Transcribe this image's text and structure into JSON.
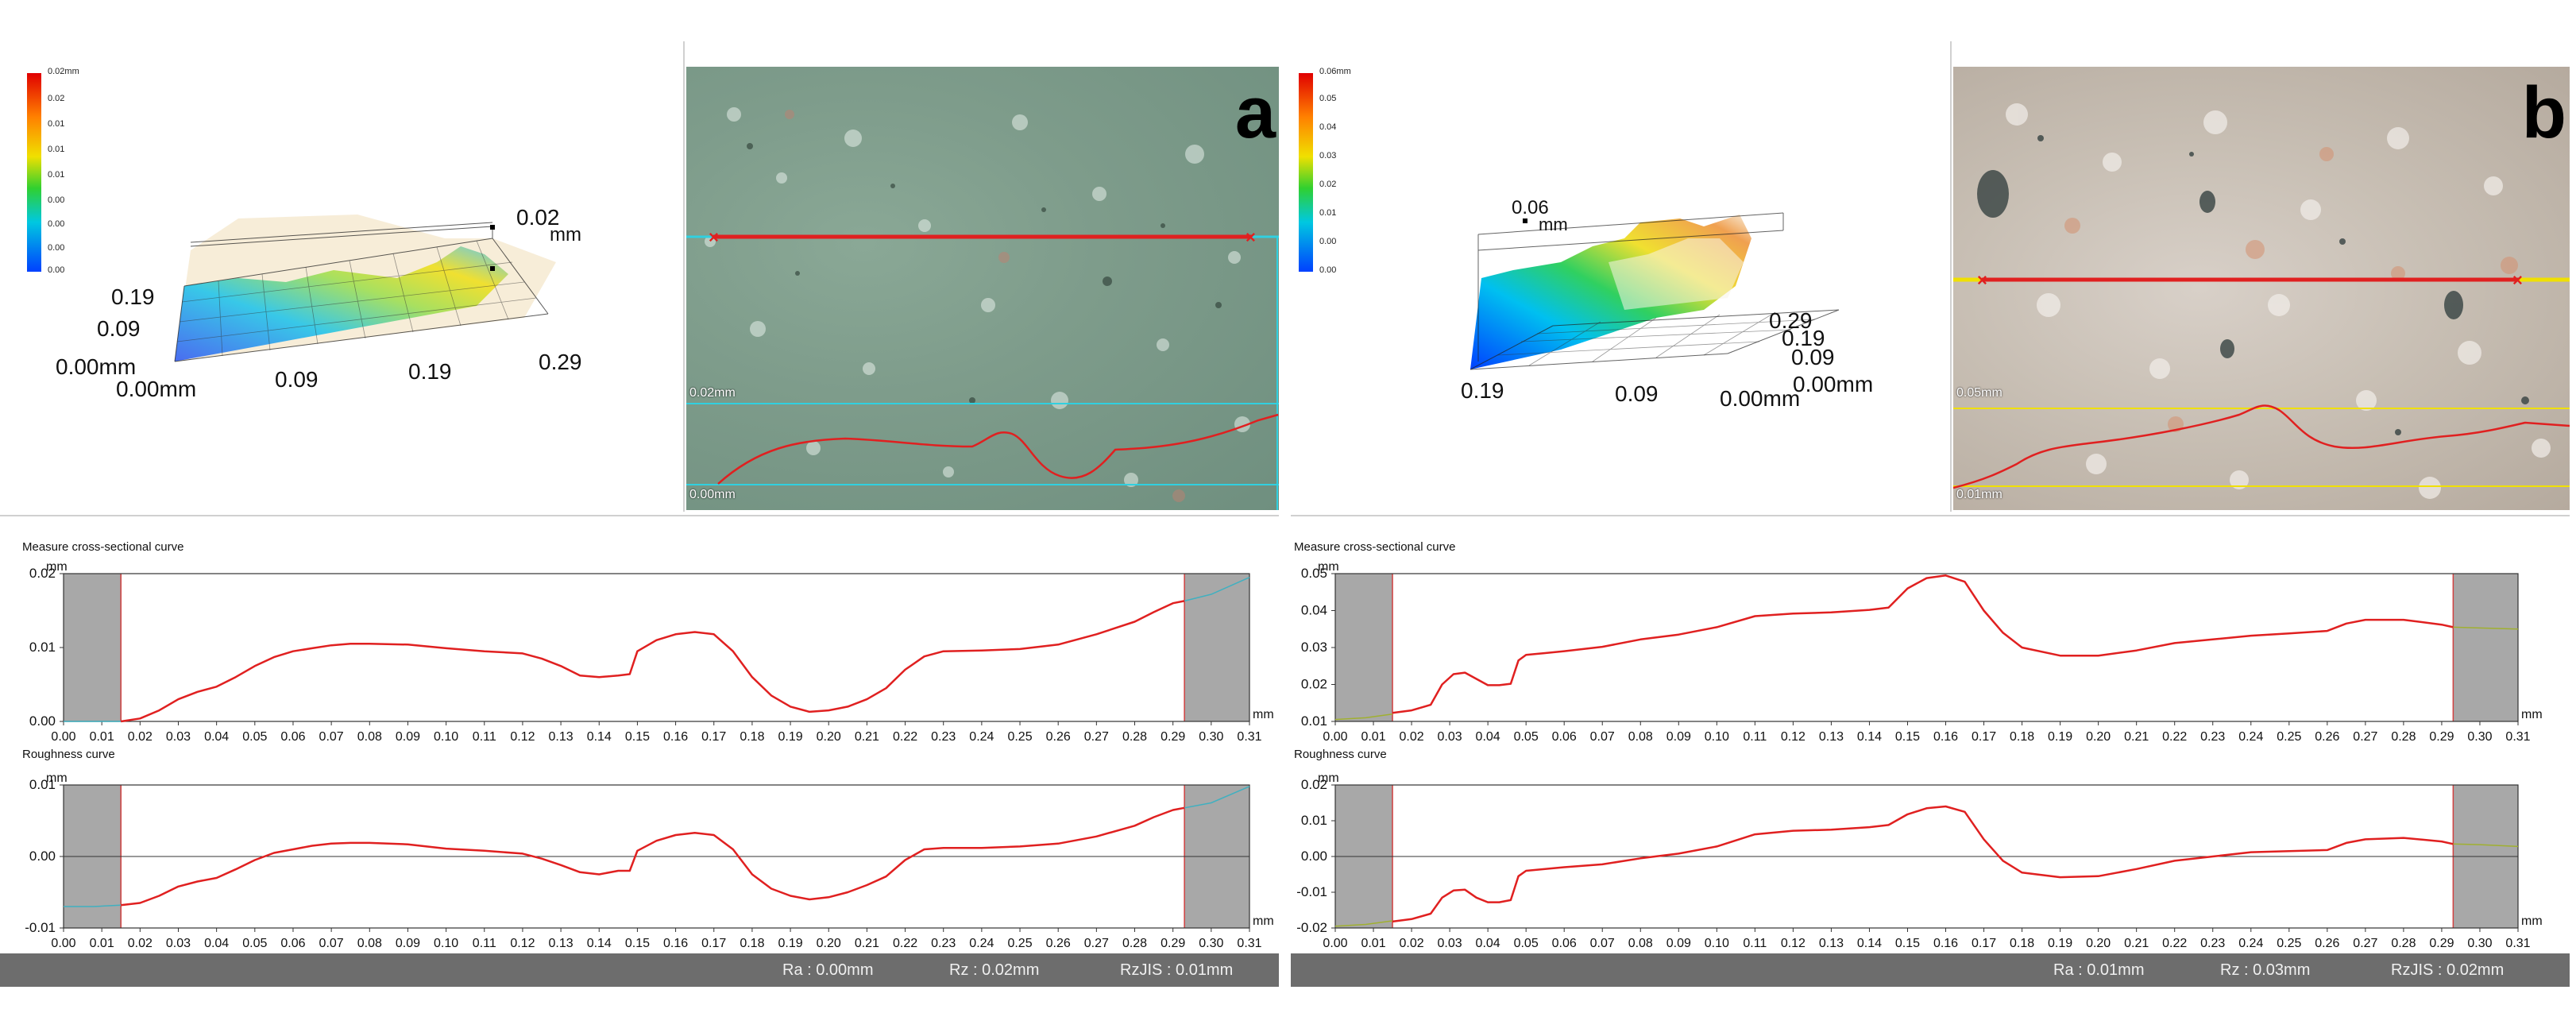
{
  "panels": [
    {
      "id": "a",
      "letter": "a",
      "colorbar_labels": [
        "0.02mm",
        "0.02",
        "0.01",
        "0.01",
        "0.01",
        "0.00",
        "0.00",
        "0.00",
        "0.00"
      ],
      "view3d_labels": {
        "z_top": "0.02",
        "z_unit": "mm",
        "y_labels": [
          "0.19",
          "0.09",
          "0.00mm"
        ],
        "x_labels": [
          "0.00mm",
          "0.09",
          "0.19",
          "0.29"
        ]
      },
      "photo_labels": [
        "0.02mm",
        "0.00mm"
      ],
      "photo_colors": {
        "base": "#7e9c8b",
        "line": "#e02020",
        "guide": "#30d0e0"
      },
      "stats": [
        "Ra : 0.00mm",
        "Rz : 0.02mm",
        "RzJIS : 0.01mm"
      ]
    },
    {
      "id": "b",
      "letter": "b",
      "colorbar_labels": [
        "0.06mm",
        "0.05",
        "0.04",
        "0.03",
        "0.02",
        "0.01",
        "0.00",
        "0.00"
      ],
      "view3d_labels": {
        "z_top": "0.06",
        "z_unit": "mm",
        "y_labels": [
          "0.29",
          "0.19",
          "0.09",
          "0.00mm"
        ],
        "x_labels": [
          "0.19",
          "0.09",
          "0.00mm"
        ]
      },
      "photo_labels": [
        "0.05mm",
        "0.01mm"
      ],
      "photo_colors": {
        "base": "#c8bfb4",
        "line": "#e02020",
        "guide": "#f0e000"
      },
      "stats": [
        "Ra : 0.01mm",
        "Rz : 0.03mm",
        "RzJIS : 0.02mm"
      ]
    }
  ],
  "chart_data": [
    {
      "type": "line",
      "panel": "a",
      "title": "Measure cross-sectional curve",
      "xlabel": "mm",
      "ylabel": "mm",
      "xlim": [
        0,
        0.31
      ],
      "ylim": [
        0,
        0.02
      ],
      "xticks": [
        "0.00",
        "0.01",
        "0.02",
        "0.03",
        "0.04",
        "0.05",
        "0.06",
        "0.07",
        "0.08",
        "0.09",
        "0.10",
        "0.11",
        "0.12",
        "0.13",
        "0.14",
        "0.15",
        "0.16",
        "0.17",
        "0.18",
        "0.19",
        "0.20",
        "0.21",
        "0.22",
        "0.23",
        "0.24",
        "0.25",
        "0.26",
        "0.27",
        "0.28",
        "0.29",
        "0.30",
        "0.31"
      ],
      "yticks": [
        "0.02",
        "0.01",
        "0.00"
      ],
      "shaded_x": [
        [
          0,
          0.015
        ],
        [
          0.293,
          0.31
        ]
      ],
      "outer": {
        "x": [
          0,
          0.008,
          0.015
        ],
        "y": [
          0,
          0,
          0
        ]
      },
      "outer_right": {
        "x": [
          0.293,
          0.3,
          0.31
        ],
        "y": [
          0.0163,
          0.0172,
          0.0195
        ]
      },
      "x": [
        0.015,
        0.02,
        0.025,
        0.03,
        0.035,
        0.04,
        0.045,
        0.05,
        0.055,
        0.06,
        0.065,
        0.07,
        0.075,
        0.08,
        0.09,
        0.1,
        0.11,
        0.12,
        0.125,
        0.13,
        0.135,
        0.14,
        0.145,
        0.148,
        0.15,
        0.155,
        0.16,
        0.165,
        0.17,
        0.175,
        0.18,
        0.185,
        0.19,
        0.195,
        0.2,
        0.205,
        0.21,
        0.215,
        0.22,
        0.225,
        0.23,
        0.24,
        0.25,
        0.26,
        0.27,
        0.28,
        0.285,
        0.29,
        0.293
      ],
      "y": [
        0.0,
        0.0004,
        0.0015,
        0.003,
        0.004,
        0.0047,
        0.006,
        0.0075,
        0.0087,
        0.0095,
        0.0099,
        0.0103,
        0.0105,
        0.0105,
        0.0104,
        0.0099,
        0.0095,
        0.0092,
        0.0085,
        0.0075,
        0.0062,
        0.006,
        0.0062,
        0.0064,
        0.0095,
        0.011,
        0.0118,
        0.0121,
        0.0118,
        0.0095,
        0.006,
        0.0035,
        0.002,
        0.0013,
        0.0015,
        0.002,
        0.003,
        0.0045,
        0.007,
        0.0088,
        0.0095,
        0.0096,
        0.0098,
        0.0104,
        0.0118,
        0.0135,
        0.0148,
        0.016,
        0.0163
      ]
    },
    {
      "type": "line",
      "panel": "a",
      "title": "Roughness curve",
      "xlabel": "mm",
      "ylabel": "mm",
      "xlim": [
        0,
        0.31
      ],
      "ylim": [
        -0.01,
        0.01
      ],
      "xticks": [
        "0.00",
        "0.01",
        "0.02",
        "0.03",
        "0.04",
        "0.05",
        "0.06",
        "0.07",
        "0.08",
        "0.09",
        "0.10",
        "0.11",
        "0.12",
        "0.13",
        "0.14",
        "0.15",
        "0.16",
        "0.17",
        "0.18",
        "0.19",
        "0.20",
        "0.21",
        "0.22",
        "0.23",
        "0.24",
        "0.25",
        "0.26",
        "0.27",
        "0.28",
        "0.29",
        "0.30",
        "0.31"
      ],
      "yticks": [
        "0.01",
        "0.00",
        "-0.01"
      ],
      "shaded_x": [
        [
          0,
          0.015
        ],
        [
          0.293,
          0.31
        ]
      ],
      "outer": {
        "x": [
          0,
          0.008,
          0.015
        ],
        "y": [
          -0.007,
          -0.007,
          -0.0068
        ]
      },
      "outer_right": {
        "x": [
          0.293,
          0.3,
          0.31
        ],
        "y": [
          0.0068,
          0.0075,
          0.0098
        ]
      },
      "x": [
        0.015,
        0.02,
        0.025,
        0.03,
        0.035,
        0.04,
        0.045,
        0.05,
        0.055,
        0.06,
        0.065,
        0.07,
        0.075,
        0.08,
        0.09,
        0.1,
        0.11,
        0.12,
        0.125,
        0.13,
        0.135,
        0.14,
        0.145,
        0.148,
        0.15,
        0.155,
        0.16,
        0.165,
        0.17,
        0.175,
        0.18,
        0.185,
        0.19,
        0.195,
        0.2,
        0.205,
        0.21,
        0.215,
        0.22,
        0.225,
        0.23,
        0.24,
        0.25,
        0.26,
        0.27,
        0.28,
        0.285,
        0.29,
        0.293
      ],
      "y": [
        -0.0068,
        -0.0065,
        -0.0055,
        -0.0042,
        -0.0035,
        -0.003,
        -0.0018,
        -0.0005,
        0.0005,
        0.001,
        0.0015,
        0.0018,
        0.0019,
        0.0019,
        0.0017,
        0.0011,
        0.0008,
        0.0004,
        -0.0003,
        -0.0012,
        -0.0022,
        -0.0025,
        -0.002,
        -0.002,
        0.0008,
        0.0022,
        0.003,
        0.0033,
        0.003,
        0.001,
        -0.0025,
        -0.0045,
        -0.0055,
        -0.006,
        -0.0057,
        -0.005,
        -0.004,
        -0.0028,
        -0.0005,
        0.001,
        0.0012,
        0.0012,
        0.0014,
        0.0018,
        0.0028,
        0.0043,
        0.0055,
        0.0065,
        0.0068
      ]
    },
    {
      "type": "line",
      "panel": "b",
      "title": "Measure cross-sectional curve",
      "xlabel": "mm",
      "ylabel": "mm",
      "xlim": [
        0,
        0.31
      ],
      "ylim": [
        0.01,
        0.05
      ],
      "xticks": [
        "0.00",
        "0.01",
        "0.02",
        "0.03",
        "0.04",
        "0.05",
        "0.06",
        "0.07",
        "0.08",
        "0.09",
        "0.10",
        "0.11",
        "0.12",
        "0.13",
        "0.14",
        "0.15",
        "0.16",
        "0.17",
        "0.18",
        "0.19",
        "0.20",
        "0.21",
        "0.22",
        "0.23",
        "0.24",
        "0.25",
        "0.26",
        "0.27",
        "0.28",
        "0.29",
        "0.30",
        "0.31"
      ],
      "yticks": [
        "0.05",
        "0.04",
        "0.03",
        "0.02",
        "0.01"
      ],
      "shaded_x": [
        [
          0,
          0.015
        ],
        [
          0.293,
          0.31
        ]
      ],
      "outer": {
        "x": [
          0,
          0.008,
          0.015
        ],
        "y": [
          0.0105,
          0.011,
          0.012
        ]
      },
      "outer_right": {
        "x": [
          0.293,
          0.3,
          0.31
        ],
        "y": [
          0.0355,
          0.0353,
          0.035
        ]
      },
      "x": [
        0.015,
        0.02,
        0.025,
        0.028,
        0.031,
        0.034,
        0.037,
        0.04,
        0.043,
        0.046,
        0.048,
        0.05,
        0.055,
        0.06,
        0.07,
        0.08,
        0.09,
        0.1,
        0.11,
        0.12,
        0.13,
        0.14,
        0.145,
        0.15,
        0.155,
        0.16,
        0.165,
        0.17,
        0.175,
        0.18,
        0.19,
        0.2,
        0.21,
        0.22,
        0.23,
        0.24,
        0.25,
        0.26,
        0.265,
        0.27,
        0.28,
        0.29,
        0.293
      ],
      "y": [
        0.0123,
        0.013,
        0.0145,
        0.02,
        0.0228,
        0.0232,
        0.0215,
        0.0198,
        0.0198,
        0.0202,
        0.0265,
        0.028,
        0.0285,
        0.029,
        0.0302,
        0.0322,
        0.0335,
        0.0355,
        0.0385,
        0.0392,
        0.0395,
        0.0402,
        0.0408,
        0.046,
        0.0488,
        0.0495,
        0.0478,
        0.04,
        0.034,
        0.03,
        0.0278,
        0.0278,
        0.0292,
        0.0312,
        0.0322,
        0.0332,
        0.0338,
        0.0345,
        0.0365,
        0.0375,
        0.0375,
        0.0362,
        0.0355
      ]
    },
    {
      "type": "line",
      "panel": "b",
      "title": "Roughness curve",
      "xlabel": "mm",
      "ylabel": "mm",
      "xlim": [
        0,
        0.31
      ],
      "ylim": [
        -0.02,
        0.02
      ],
      "xticks": [
        "0.00",
        "0.01",
        "0.02",
        "0.03",
        "0.04",
        "0.05",
        "0.06",
        "0.07",
        "0.08",
        "0.09",
        "0.10",
        "0.11",
        "0.12",
        "0.13",
        "0.14",
        "0.15",
        "0.16",
        "0.17",
        "0.18",
        "0.19",
        "0.20",
        "0.21",
        "0.22",
        "0.23",
        "0.24",
        "0.25",
        "0.26",
        "0.27",
        "0.28",
        "0.29",
        "0.30",
        "0.31"
      ],
      "yticks": [
        "0.02",
        "0.01",
        "0.00",
        "-0.01",
        "-0.02"
      ],
      "shaded_x": [
        [
          0,
          0.015
        ],
        [
          0.293,
          0.31
        ]
      ],
      "outer": {
        "x": [
          0,
          0.008,
          0.015
        ],
        "y": [
          -0.0195,
          -0.019,
          -0.018
        ]
      },
      "outer_right": {
        "x": [
          0.293,
          0.3,
          0.31
        ],
        "y": [
          0.0035,
          0.0033,
          0.0028
        ]
      },
      "x": [
        0.015,
        0.02,
        0.025,
        0.028,
        0.031,
        0.034,
        0.037,
        0.04,
        0.043,
        0.046,
        0.048,
        0.05,
        0.055,
        0.06,
        0.07,
        0.08,
        0.09,
        0.1,
        0.11,
        0.12,
        0.13,
        0.14,
        0.145,
        0.15,
        0.155,
        0.16,
        0.165,
        0.17,
        0.175,
        0.18,
        0.19,
        0.2,
        0.21,
        0.22,
        0.23,
        0.24,
        0.25,
        0.26,
        0.265,
        0.27,
        0.28,
        0.29,
        0.293
      ],
      "y": [
        -0.0182,
        -0.0175,
        -0.016,
        -0.0115,
        -0.0095,
        -0.0093,
        -0.0115,
        -0.0128,
        -0.0128,
        -0.0122,
        -0.0055,
        -0.004,
        -0.0035,
        -0.003,
        -0.0022,
        -0.0005,
        0.0008,
        0.0028,
        0.0062,
        0.0072,
        0.0075,
        0.0082,
        0.0088,
        0.0118,
        0.0135,
        0.014,
        0.0125,
        0.0048,
        -0.0012,
        -0.0045,
        -0.0058,
        -0.0055,
        -0.0035,
        -0.0012,
        0.0,
        0.0012,
        0.0015,
        0.0018,
        0.0038,
        0.0048,
        0.0052,
        0.0042,
        0.0035
      ]
    }
  ]
}
